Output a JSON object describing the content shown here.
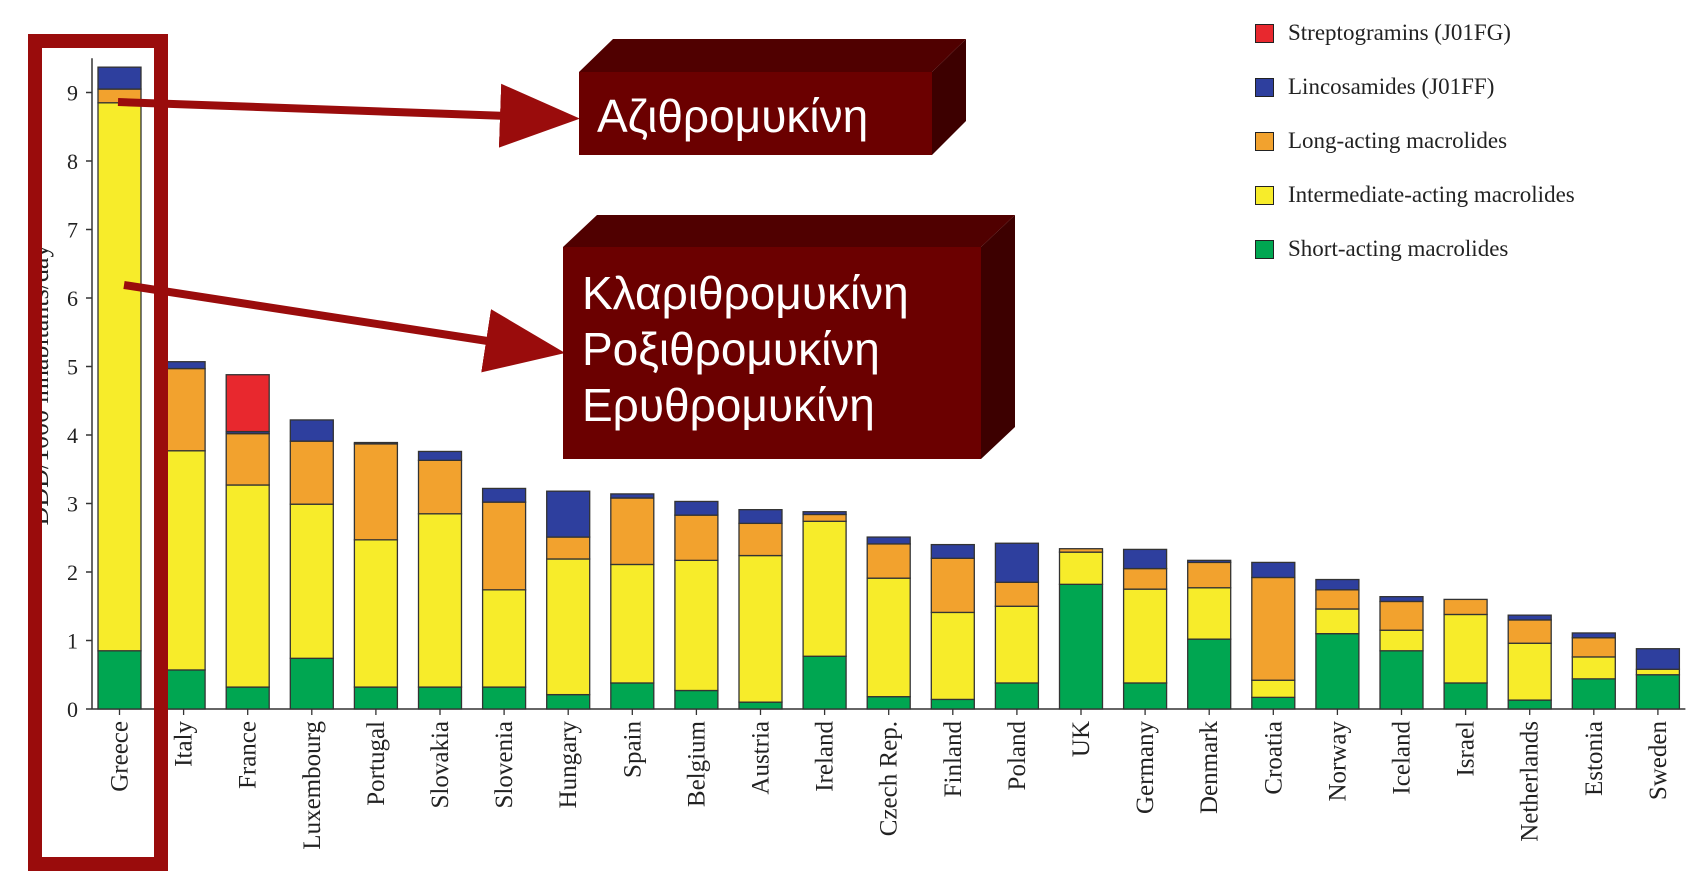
{
  "chart_data": {
    "type": "bar",
    "stacked": true,
    "ylabel": "DDD/1000 inhabitants/day",
    "ylim": [
      0,
      9.5
    ],
    "yticks": [
      0,
      1,
      2,
      3,
      4,
      5,
      6,
      7,
      8,
      9
    ],
    "grid": false,
    "legend_position": "top-right",
    "categories": [
      "Greece",
      "Italy",
      "France",
      "Luxembourg",
      "Portugal",
      "Slovakia",
      "Slovenia",
      "Hungary",
      "Spain",
      "Belgium",
      "Austria",
      "Ireland",
      "Czech Rep.",
      "Finland",
      "Poland",
      "UK",
      "Germany",
      "Denmark",
      "Croatia",
      "Norway",
      "Iceland",
      "Israel",
      "Netherlands",
      "Estonia",
      "Sweden"
    ],
    "series": [
      {
        "name": "Short-acting macrolides",
        "color": "#00a651",
        "values": [
          0.85,
          0.57,
          0.32,
          0.74,
          0.32,
          0.32,
          0.32,
          0.21,
          0.38,
          0.27,
          0.1,
          0.77,
          0.18,
          0.14,
          0.38,
          1.82,
          0.38,
          1.02,
          0.17,
          1.1,
          0.85,
          0.38,
          0.13,
          0.44,
          0.5
        ]
      },
      {
        "name": "Intermediate-acting macrolides",
        "color": "#f7ec2a",
        "values": [
          8.0,
          3.2,
          2.95,
          2.25,
          2.15,
          2.53,
          1.42,
          1.98,
          1.73,
          1.9,
          2.14,
          1.97,
          1.73,
          1.27,
          1.12,
          0.47,
          1.37,
          0.75,
          0.25,
          0.36,
          0.3,
          1.0,
          0.83,
          0.32,
          0.08
        ]
      },
      {
        "name": "Long-acting macrolides",
        "color": "#f2a22e",
        "values": [
          0.2,
          1.2,
          0.75,
          0.92,
          1.4,
          0.78,
          1.28,
          0.32,
          0.97,
          0.66,
          0.47,
          0.1,
          0.5,
          0.79,
          0.35,
          0.05,
          0.3,
          0.37,
          1.5,
          0.28,
          0.42,
          0.22,
          0.34,
          0.28,
          0.0
        ]
      },
      {
        "name": "Lincosamides (J01FF)",
        "color": "#2e3f9e",
        "values": [
          0.32,
          0.1,
          0.03,
          0.31,
          0.02,
          0.13,
          0.2,
          0.67,
          0.06,
          0.2,
          0.2,
          0.04,
          0.1,
          0.2,
          0.57,
          0.0,
          0.28,
          0.03,
          0.22,
          0.15,
          0.07,
          0.0,
          0.07,
          0.07,
          0.3
        ]
      },
      {
        "name": "Streptogramins (J01FG)",
        "color": "#e8282e",
        "values": [
          0,
          0,
          0.83,
          0,
          0,
          0,
          0,
          0,
          0,
          0,
          0,
          0,
          0,
          0,
          0,
          0,
          0,
          0,
          0,
          0,
          0,
          0,
          0,
          0,
          0
        ]
      }
    ],
    "legend_order": [
      "Streptogramins (J01FG)",
      "Lincosamides (J01FF)",
      "Long-acting macrolides",
      "Intermediate-acting macrolides",
      "Short-acting macrolides"
    ]
  },
  "callouts": {
    "azithro": {
      "lines": [
        "Αζιθρομυκίνη"
      ]
    },
    "others": {
      "lines": [
        "Κλαριθρομυκίνη",
        "Ροξιθρομυκίνη",
        "Ερυθρομυκίνη"
      ]
    }
  },
  "colors": {
    "highlight": "#9a0c0c",
    "callout_face": "#6b0000",
    "callout_side": "#3d0000",
    "callout_top": "#500000"
  }
}
